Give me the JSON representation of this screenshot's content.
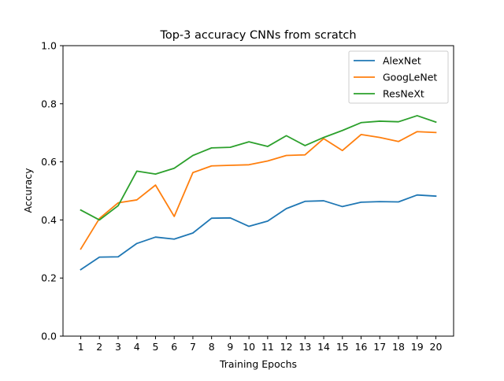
{
  "chart_data": {
    "type": "line",
    "title": "Top-3 accuracy CNNs from scratch",
    "xlabel": "Training Epochs",
    "ylabel": "Accuracy",
    "x": [
      1,
      2,
      3,
      4,
      5,
      6,
      7,
      8,
      9,
      10,
      11,
      12,
      13,
      14,
      15,
      16,
      17,
      18,
      19,
      20
    ],
    "xticks": [
      "1",
      "2",
      "3",
      "4",
      "5",
      "6",
      "7",
      "8",
      "9",
      "10",
      "11",
      "12",
      "13",
      "14",
      "15",
      "16",
      "17",
      "18",
      "19",
      "20"
    ],
    "xlim": [
      0.05,
      20.95
    ],
    "ylim": [
      0,
      1
    ],
    "yticks": [
      "0.0",
      "0.2",
      "0.4",
      "0.6",
      "0.8",
      "1.0"
    ],
    "grid": false,
    "legend_position": "top-right",
    "series": [
      {
        "name": "AlexNet",
        "color": "#1f77b4",
        "values": [
          0.229,
          0.272,
          0.273,
          0.319,
          0.341,
          0.334,
          0.355,
          0.406,
          0.407,
          0.378,
          0.396,
          0.439,
          0.464,
          0.466,
          0.446,
          0.461,
          0.463,
          0.462,
          0.486,
          0.482
        ]
      },
      {
        "name": "GoogLeNet",
        "color": "#ff7f0e",
        "values": [
          0.3,
          0.405,
          0.459,
          0.469,
          0.52,
          0.412,
          0.563,
          0.586,
          0.588,
          0.59,
          0.603,
          0.622,
          0.624,
          0.68,
          0.639,
          0.694,
          0.684,
          0.67,
          0.704,
          0.701
        ]
      },
      {
        "name": "ResNeXt",
        "color": "#2ca02c",
        "values": [
          0.434,
          0.4,
          0.449,
          0.568,
          0.558,
          0.578,
          0.622,
          0.648,
          0.65,
          0.669,
          0.653,
          0.69,
          0.656,
          0.684,
          0.708,
          0.735,
          0.74,
          0.738,
          0.759,
          0.737
        ]
      }
    ]
  }
}
